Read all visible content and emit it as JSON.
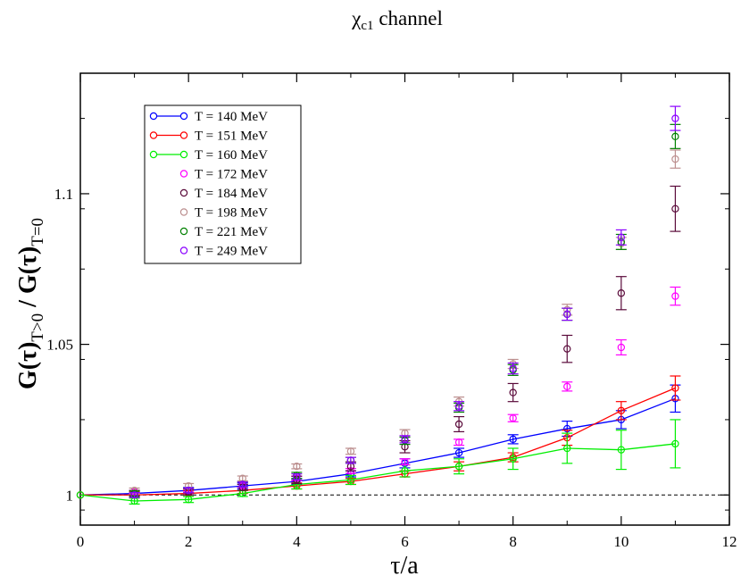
{
  "chart_data": {
    "type": "scatter",
    "title_main": "χ",
    "title_sub": "c1",
    "title_rest": " channel",
    "xlabel": "τ/a",
    "ylabel_main": "G(τ)",
    "ylabel_sub1": "T>0",
    "ylabel_mid": " / G(τ)",
    "ylabel_sub2": "T=0",
    "xlim": [
      0,
      12
    ],
    "ylim": [
      0.99,
      1.14
    ],
    "x_ticks": [
      0,
      2,
      4,
      6,
      8,
      10,
      12
    ],
    "x_tick_labels": [
      "0",
      "2",
      "4",
      "6",
      "8",
      "10",
      "12"
    ],
    "y_ticks": [
      1.0,
      1.05,
      1.1
    ],
    "y_tick_labels": [
      "1",
      "1.05",
      "1.1"
    ],
    "reference_line": 1.0,
    "legend_position": "top-left",
    "series": [
      {
        "name": "T = 140 MeV",
        "color": "#0000ff",
        "line": true,
        "x": [
          0,
          1,
          2,
          3,
          4,
          5,
          6,
          7,
          8,
          9,
          10,
          11
        ],
        "y": [
          1.0,
          1.0005,
          1.0015,
          1.003,
          1.0045,
          1.007,
          1.0105,
          1.014,
          1.0185,
          1.022,
          1.025,
          1.032
        ],
        "err": [
          0,
          0.001,
          0.001,
          0.001,
          0.001,
          0.001,
          0.0015,
          0.0015,
          0.0015,
          0.0025,
          0.003,
          0.0045
        ]
      },
      {
        "name": "T = 151 MeV",
        "color": "#ff0000",
        "line": true,
        "x": [
          0,
          1,
          2,
          3,
          4,
          5,
          6,
          7,
          8,
          9,
          10,
          11
        ],
        "y": [
          1.0,
          1.0,
          1.0005,
          1.0015,
          1.003,
          1.0045,
          1.007,
          1.0095,
          1.0125,
          1.019,
          1.028,
          1.0355
        ],
        "err": [
          0,
          0.001,
          0.001,
          0.001,
          0.001,
          0.001,
          0.001,
          0.0015,
          0.0015,
          0.0025,
          0.003,
          0.004
        ]
      },
      {
        "name": "T = 160 MeV",
        "color": "#00ee00",
        "line": true,
        "x": [
          0,
          1,
          2,
          3,
          4,
          5,
          6,
          7,
          8,
          9,
          10,
          11
        ],
        "y": [
          1.0,
          0.998,
          0.9985,
          1.0005,
          1.0035,
          1.005,
          1.008,
          1.0095,
          1.012,
          1.0155,
          1.015,
          1.017
        ],
        "err": [
          0,
          0.001,
          0.001,
          0.001,
          0.0015,
          0.0015,
          0.002,
          0.0025,
          0.0035,
          0.005,
          0.0065,
          0.008
        ]
      },
      {
        "name": "T = 172 MeV",
        "color": "#ff00ff",
        "line": false,
        "x": [
          1,
          2,
          3,
          4,
          5,
          6,
          7,
          8,
          9,
          10,
          11
        ],
        "y": [
          1.001,
          1.0015,
          1.003,
          1.0055,
          1.008,
          1.011,
          1.0175,
          1.0255,
          1.036,
          1.049,
          1.066
        ],
        "err": [
          0.0005,
          0.0005,
          0.0005,
          0.0008,
          0.0008,
          0.001,
          0.001,
          0.0012,
          0.0015,
          0.0025,
          0.003
        ]
      },
      {
        "name": "T = 184 MeV",
        "color": "#5a0a3a",
        "line": false,
        "x": [
          1,
          2,
          3,
          4,
          5,
          6,
          7,
          8,
          9,
          10,
          11
        ],
        "y": [
          1.0005,
          1.001,
          1.0025,
          1.005,
          1.0095,
          1.016,
          1.0235,
          1.034,
          1.0485,
          1.067,
          1.095
        ],
        "err": [
          0.001,
          0.001,
          0.001,
          0.0012,
          0.0015,
          0.002,
          0.0025,
          0.003,
          0.0045,
          0.0055,
          0.0075
        ]
      },
      {
        "name": "T = 198 MeV",
        "color": "#bc8f8f",
        "line": false,
        "x": [
          1,
          2,
          3,
          4,
          5,
          6,
          7,
          8,
          9,
          10,
          11
        ],
        "y": [
          1.0015,
          1.003,
          1.0055,
          1.0095,
          1.0145,
          1.0205,
          1.031,
          1.0435,
          1.0615,
          1.0835,
          1.1115
        ],
        "err": [
          0.0008,
          0.0008,
          0.0008,
          0.0008,
          0.001,
          0.0012,
          0.0015,
          0.0015,
          0.0018,
          0.002,
          0.003
        ]
      },
      {
        "name": "T = 221 MeV",
        "color": "#008000",
        "line": false,
        "x": [
          1,
          2,
          3,
          4,
          5,
          6,
          7,
          8,
          9,
          10,
          11
        ],
        "y": [
          1.0005,
          1.0015,
          1.0035,
          1.0065,
          1.0115,
          1.018,
          1.029,
          1.0415,
          1.06,
          1.084,
          1.119
        ],
        "err": [
          0.0008,
          0.0008,
          0.0008,
          0.001,
          0.001,
          0.0012,
          0.0015,
          0.0018,
          0.002,
          0.0025,
          0.004
        ]
      },
      {
        "name": "T = 249 MeV",
        "color": "#8b00ff",
        "line": false,
        "x": [
          1,
          2,
          3,
          4,
          5,
          6,
          7,
          8,
          9,
          10,
          11
        ],
        "y": [
          1.0,
          1.0015,
          1.0035,
          1.006,
          1.0115,
          1.0185,
          1.0295,
          1.042,
          1.06,
          1.0855,
          1.125
        ],
        "err": [
          0.0008,
          0.0008,
          0.0008,
          0.001,
          0.001,
          0.0012,
          0.0015,
          0.0018,
          0.002,
          0.0025,
          0.004
        ]
      }
    ]
  }
}
